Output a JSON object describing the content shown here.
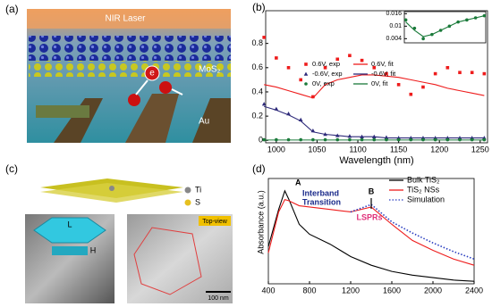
{
  "panels": {
    "labels": [
      "(a)",
      "(b)",
      "(c)",
      "(d)"
    ]
  },
  "illustration_a": {
    "laser": "NIR Laser",
    "layer": "MoS₂",
    "substrate": "Au",
    "electron": "e"
  },
  "illustration_c": {
    "legend": [
      "Ti",
      "S"
    ],
    "length": "L",
    "height": "H",
    "view": "Top-view",
    "scale_bar": "100 nm"
  },
  "chart_data": [
    {
      "type": "line",
      "xlabel": "Wavelength (nm)",
      "x": [
        985,
        1000,
        1015,
        1030,
        1045,
        1060,
        1075,
        1090,
        1105,
        1120,
        1135,
        1150,
        1165,
        1180,
        1195,
        1210,
        1225,
        1240,
        1255
      ],
      "xlim": [
        987,
        1259
      ],
      "xticks": [
        1000,
        1050,
        1100,
        1150,
        1200,
        1250
      ],
      "ylim": [
        -0.02,
        1.07
      ],
      "yticks": [
        0,
        0.2,
        0.4,
        0.6,
        0.8
      ],
      "legend": "upper left",
      "legend_columns": 2,
      "series": [
        {
          "name": "0.6V, exp",
          "color": "#ee1c1c",
          "mode": "markers",
          "marker": "square",
          "values": [
            0.85,
            0.68,
            0.6,
            0.5,
            0.36,
            0.6,
            0.67,
            0.7,
            0.66,
            0.6,
            0.55,
            0.46,
            0.38,
            0.44,
            0.55,
            0.6,
            0.56,
            0.56,
            0.55
          ]
        },
        {
          "name": "0.6V, fit",
          "color": "#ee1c1c",
          "mode": "line",
          "values": [
            0.46,
            0.44,
            0.41,
            0.38,
            0.35,
            0.46,
            0.5,
            0.52,
            0.54,
            0.54,
            0.53,
            0.52,
            0.5,
            0.48,
            0.46,
            0.43,
            0.41,
            0.39,
            0.37
          ]
        },
        {
          "name": "-0.6V, exp",
          "color": "#2e2a7a",
          "mode": "markers",
          "marker": "triangle",
          "values": [
            0.3,
            0.26,
            0.22,
            0.17,
            0.08,
            0.05,
            0.04,
            0.035,
            0.03,
            0.03,
            0.025,
            0.02,
            0.02,
            0.02,
            0.02,
            0.02,
            0.02,
            0.02,
            0.02
          ]
        },
        {
          "name": "-0.6V, fit",
          "color": "#2e2a7a",
          "mode": "line",
          "values": [
            0.28,
            0.25,
            0.21,
            0.16,
            0.07,
            0.05,
            0.04,
            0.03,
            0.03,
            0.03,
            0.02,
            0.02,
            0.02,
            0.02,
            0.02,
            0.02,
            0.02,
            0.02,
            0.02
          ]
        },
        {
          "name": "0V, exp",
          "color": "#1a7a3a",
          "mode": "markers",
          "marker": "circle",
          "values": [
            0.005,
            0.005,
            0.005,
            0.005,
            0.005,
            0.005,
            0.005,
            0.005,
            0.005,
            0.005,
            0.005,
            0.005,
            0.005,
            0.005,
            0.005,
            0.005,
            0.005,
            0.005,
            0.005
          ]
        },
        {
          "name": "0V, fit",
          "color": "#1a7a3a",
          "mode": "line",
          "values": [
            0.003,
            0.003,
            0.003,
            0.003,
            0.003,
            0.003,
            0.003,
            0.003,
            0.003,
            0.003,
            0.003,
            0.003,
            0.003,
            0.003,
            0.003,
            0.003,
            0.003,
            0.003,
            0.003
          ]
        }
      ]
    },
    {
      "type": "line",
      "x": [
        985,
        1015,
        1045,
        1075,
        1105,
        1135,
        1165,
        1195,
        1225,
        1255
      ],
      "xlim": [
        980,
        1260
      ],
      "ylim": [
        0.002,
        0.017
      ],
      "yticks": [
        0.004,
        0.01,
        0.016
      ],
      "series": [
        {
          "color": "#1a7a3a",
          "mode": "markers",
          "marker": "circle",
          "values": [
            0.013,
            0.009,
            0.004,
            0.006,
            0.008,
            0.01,
            0.012,
            0.013,
            0.014,
            0.015
          ]
        },
        {
          "color": "#1a7a3a",
          "mode": "line",
          "values": [
            0.012,
            0.008,
            0.005,
            0.006,
            0.008,
            0.01,
            0.012,
            0.013,
            0.014,
            0.015
          ]
        }
      ]
    },
    {
      "type": "line",
      "ylabel": "Absorbance (a.u.)",
      "x": [
        400,
        500,
        560,
        600,
        700,
        800,
        1000,
        1200,
        1400,
        1600,
        1800,
        2000,
        2200,
        2400
      ],
      "xlim": [
        400,
        2400
      ],
      "xticks": [
        400,
        800,
        1200,
        1600,
        2000,
        2400
      ],
      "ylim": [
        0,
        0.85
      ],
      "legend": "upper right",
      "annotations": [
        "A",
        "Interband",
        "Transition",
        "B",
        "LSPRs"
      ],
      "series": [
        {
          "name": "Bulk TiS₂",
          "color": "#000000",
          "mode": "line",
          "values": [
            0.3,
            0.6,
            0.75,
            0.68,
            0.48,
            0.4,
            0.32,
            0.22,
            0.15,
            0.1,
            0.07,
            0.05,
            0.03,
            0.02
          ]
        },
        {
          "name": "TiS₂ NSs",
          "color": "#ee1c1c",
          "mode": "line",
          "values": [
            0.25,
            0.58,
            0.68,
            0.67,
            0.63,
            0.62,
            0.6,
            0.58,
            0.62,
            0.48,
            0.35,
            0.27,
            0.2,
            0.15
          ]
        },
        {
          "name": "Simulation",
          "color": "#2a3ec0",
          "mode": "line",
          "dash": "dotted",
          "values": [
            null,
            null,
            null,
            null,
            null,
            null,
            null,
            0.58,
            0.64,
            0.5,
            0.41,
            0.33,
            0.26,
            0.2
          ]
        }
      ]
    }
  ]
}
